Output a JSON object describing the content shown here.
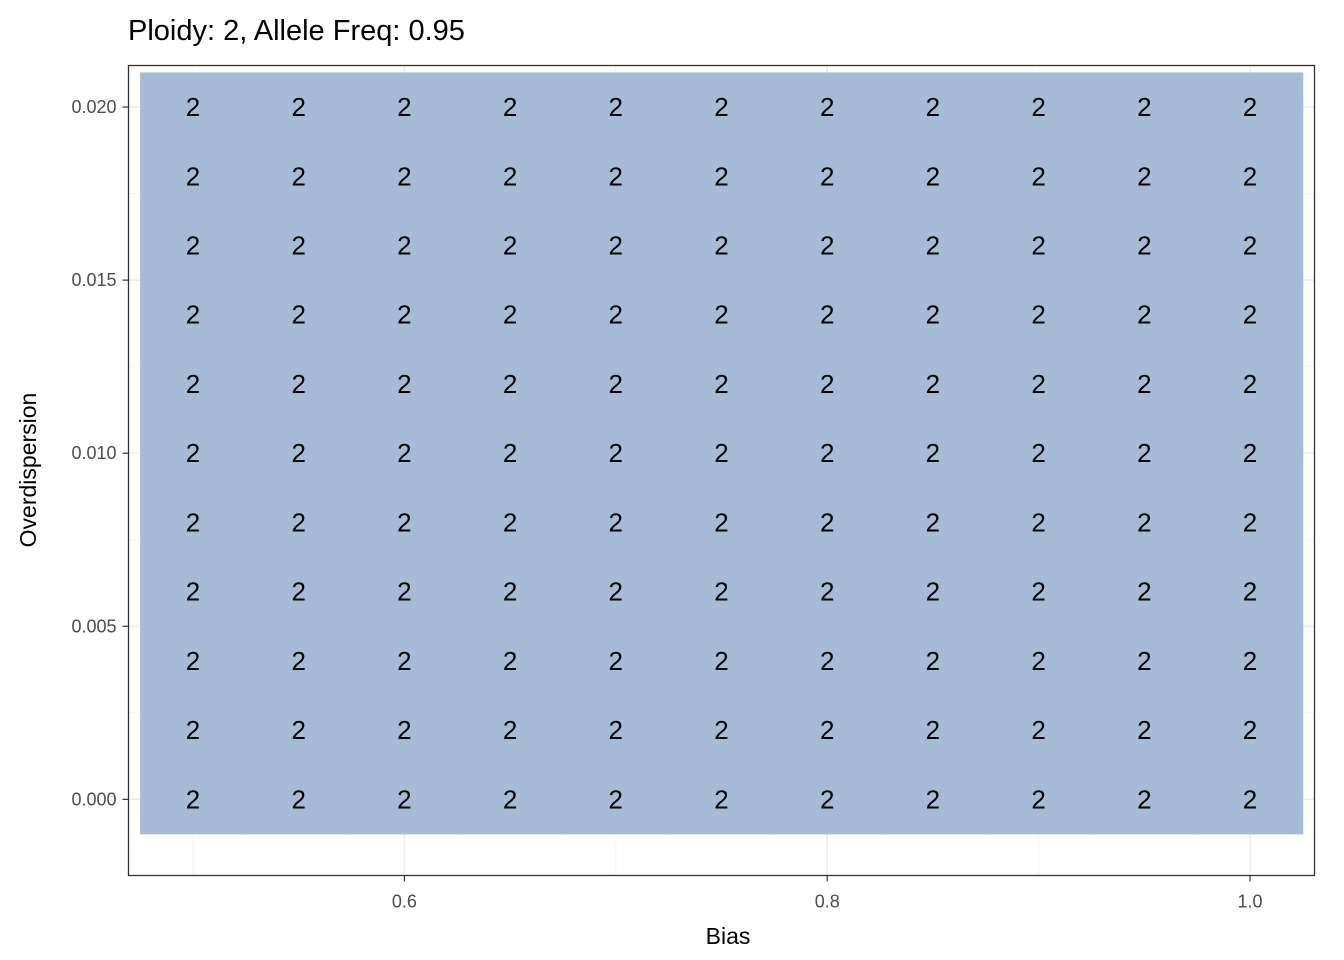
{
  "chart_data": {
    "type": "heatmap",
    "title": "Ploidy: 2, Allele Freq: 0.95",
    "xlabel": "Bias",
    "ylabel": "Overdispersion",
    "x": [
      0.5,
      0.55,
      0.6,
      0.65,
      0.7,
      0.75,
      0.8,
      0.85,
      0.9,
      0.95,
      1.0
    ],
    "y": [
      0.0,
      0.002,
      0.004,
      0.006,
      0.008,
      0.01,
      0.012,
      0.014,
      0.016,
      0.018,
      0.02
    ],
    "cell_value": "2",
    "fill_color": "#a6bcd6",
    "xlim": [
      0.4695,
      1.0305
    ],
    "ylim": [
      -0.0022,
      0.0212
    ],
    "x_ticks": [
      0.6,
      0.8,
      1.0
    ],
    "x_tick_labels": [
      "0.6",
      "0.8",
      "1.0"
    ],
    "y_ticks": [
      0.0,
      0.005,
      0.01,
      0.015,
      0.02
    ],
    "y_tick_labels": [
      "0.000",
      "0.005",
      "0.010",
      "0.015",
      "0.020"
    ],
    "grid": true,
    "legend": "none"
  }
}
